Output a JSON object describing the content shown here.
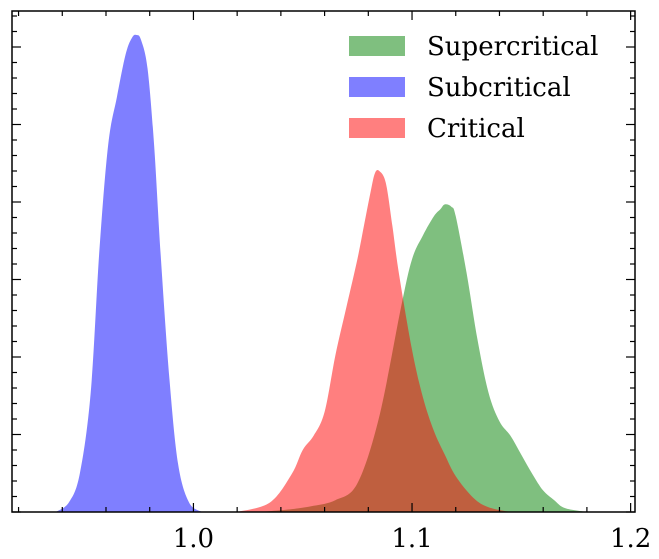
{
  "chart_data": {
    "type": "area",
    "title": "",
    "xlabel": "",
    "ylabel": "",
    "xlim": [
      0.917,
      1.202
    ],
    "ylim": [
      0,
      1.0
    ],
    "x_ticks": [
      1.0,
      1.1,
      1.2
    ],
    "x_tick_labels": [
      "1.0",
      "1.1",
      "1.2"
    ],
    "y_tick_labels_shown": false,
    "grid": false,
    "legend": {
      "position": "top-right"
    },
    "series": [
      {
        "name": "Supercritical",
        "color": "#008000",
        "alpha": 0.5,
        "x": [
          1.03,
          1.045,
          1.055,
          1.065,
          1.075,
          1.085,
          1.095,
          1.1,
          1.105,
          1.11,
          1.113,
          1.115,
          1.118,
          1.12,
          1.125,
          1.13,
          1.135,
          1.14,
          1.145,
          1.15,
          1.155,
          1.16,
          1.165,
          1.17,
          1.18
        ],
        "y": [
          0.0,
          0.006,
          0.013,
          0.025,
          0.06,
          0.2,
          0.43,
          0.53,
          0.58,
          0.62,
          0.635,
          0.645,
          0.64,
          0.62,
          0.5,
          0.36,
          0.25,
          0.19,
          0.16,
          0.12,
          0.08,
          0.045,
          0.025,
          0.008,
          0.0
        ]
      },
      {
        "name": "Subcritical",
        "color": "#0000ff",
        "alpha": 0.5,
        "x": [
          0.937,
          0.943,
          0.948,
          0.953,
          0.957,
          0.961,
          0.965,
          0.969,
          0.972,
          0.974,
          0.976,
          0.979,
          0.982,
          0.985,
          0.989,
          0.993,
          0.998,
          1.004
        ],
        "y": [
          0.0,
          0.02,
          0.08,
          0.25,
          0.55,
          0.77,
          0.87,
          0.96,
          0.995,
          1.0,
          0.99,
          0.93,
          0.77,
          0.54,
          0.28,
          0.1,
          0.02,
          0.0
        ]
      },
      {
        "name": "Critical",
        "color": "#ff0000",
        "alpha": 0.5,
        "x": [
          1.02,
          1.035,
          1.045,
          1.05,
          1.055,
          1.06,
          1.065,
          1.07,
          1.075,
          1.078,
          1.081,
          1.083,
          1.085,
          1.088,
          1.091,
          1.094,
          1.1,
          1.105,
          1.11,
          1.115,
          1.12,
          1.128,
          1.135,
          1.145
        ],
        "y": [
          0.0,
          0.02,
          0.08,
          0.13,
          0.16,
          0.21,
          0.33,
          0.43,
          0.53,
          0.6,
          0.67,
          0.71,
          0.715,
          0.69,
          0.6,
          0.5,
          0.34,
          0.24,
          0.17,
          0.12,
          0.075,
          0.03,
          0.01,
          0.0
        ]
      }
    ]
  }
}
